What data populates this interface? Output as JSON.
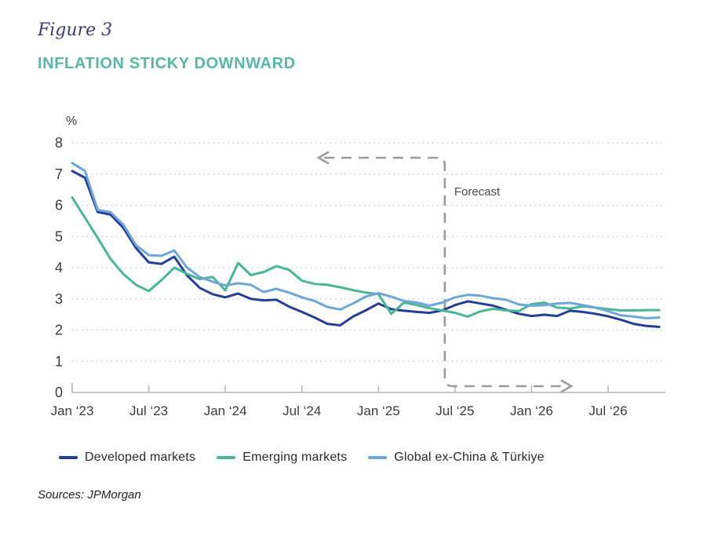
{
  "figure_label": "Figure 3",
  "title": "INFLATION STICKY DOWNWARD",
  "sources": "Sources: JPMorgan",
  "colors": {
    "figure_label": "#3c3c7c",
    "title": "#57b9a1",
    "axis_line": "#b5b5b5",
    "gridline": "#c9c9c9",
    "tick_text": "#3c3c3c",
    "annotation": "#9b9b9b"
  },
  "chart_data": {
    "type": "line",
    "title": "INFLATION STICKY DOWNWARD",
    "ylabel": "%",
    "xlabel": "",
    "ylim": [
      0,
      8.5
    ],
    "y_ticks": [
      0,
      1,
      2,
      3,
      4,
      5,
      6,
      7,
      8
    ],
    "grid": "dotted horizontal",
    "legend_position": "bottom",
    "x_tick_labels": [
      "Jan ‘23",
      "Jul ‘23",
      "Jan ‘24",
      "Jul ‘24",
      "Jan ‘25",
      "Jul ‘25",
      "Jan ‘26",
      "Jul ‘26"
    ],
    "x_tick_indices": [
      0,
      6,
      12,
      18,
      24,
      30,
      36,
      42
    ],
    "categories": [
      "Jan '23",
      "Feb '23",
      "Mar '23",
      "Apr '23",
      "May '23",
      "Jun '23",
      "Jul '23",
      "Aug '23",
      "Sep '23",
      "Oct '23",
      "Nov '23",
      "Dec '23",
      "Jan '24",
      "Feb '24",
      "Mar '24",
      "Apr '24",
      "May '24",
      "Jun '24",
      "Jul '24",
      "Aug '24",
      "Sep '24",
      "Oct '24",
      "Nov '24",
      "Dec '24",
      "Jan '25",
      "Feb '25",
      "Mar '25",
      "Apr '25",
      "May '25",
      "Jun '25",
      "Jul '25",
      "Aug '25",
      "Sep '25",
      "Oct '25",
      "Nov '25",
      "Dec '25",
      "Jan '26",
      "Feb '26",
      "Mar '26",
      "Apr '26",
      "May '26",
      "Jun '26",
      "Jul '26",
      "Aug '26",
      "Sep '26",
      "Oct '26",
      "Nov '26"
    ],
    "series": [
      {
        "name": "Developed markets",
        "color": "#243f94",
        "values": [
          7.1,
          6.88,
          5.78,
          5.7,
          5.28,
          4.63,
          4.17,
          4.12,
          4.35,
          3.75,
          3.35,
          3.15,
          3.05,
          3.17,
          3.0,
          2.95,
          2.97,
          2.75,
          2.58,
          2.4,
          2.2,
          2.15,
          2.43,
          2.63,
          2.85,
          2.67,
          2.62,
          2.58,
          2.55,
          2.63,
          2.8,
          2.92,
          2.85,
          2.78,
          2.65,
          2.52,
          2.45,
          2.49,
          2.45,
          2.62,
          2.58,
          2.52,
          2.44,
          2.33,
          2.2,
          2.13,
          2.1
        ]
      },
      {
        "name": "Emerging markets",
        "color": "#49b795",
        "values": [
          6.25,
          5.6,
          4.95,
          4.28,
          3.8,
          3.45,
          3.25,
          3.6,
          4.0,
          3.8,
          3.63,
          3.7,
          3.27,
          4.15,
          3.76,
          3.86,
          4.05,
          3.93,
          3.58,
          3.48,
          3.45,
          3.37,
          3.28,
          3.2,
          3.15,
          2.52,
          2.88,
          2.8,
          2.7,
          2.63,
          2.55,
          2.43,
          2.6,
          2.68,
          2.63,
          2.61,
          2.83,
          2.88,
          2.72,
          2.69,
          2.76,
          2.72,
          2.67,
          2.63,
          2.63,
          2.64,
          2.64
        ]
      },
      {
        "name": "Global ex-China & Türkiye",
        "color": "#6fa6d9",
        "values": [
          7.35,
          7.1,
          5.85,
          5.78,
          5.38,
          4.72,
          4.4,
          4.38,
          4.55,
          4.0,
          3.7,
          3.55,
          3.43,
          3.5,
          3.45,
          3.22,
          3.32,
          3.2,
          3.05,
          2.93,
          2.74,
          2.66,
          2.85,
          3.07,
          3.18,
          3.07,
          2.93,
          2.88,
          2.78,
          2.88,
          3.05,
          3.13,
          3.1,
          3.02,
          2.97,
          2.82,
          2.78,
          2.8,
          2.85,
          2.87,
          2.8,
          2.72,
          2.6,
          2.47,
          2.43,
          2.38,
          2.4
        ]
      }
    ],
    "annotation": {
      "label": "Forecast",
      "divider_month_index": 29.2,
      "history_arrow_direction": "left",
      "forecast_arrow_direction": "right"
    }
  }
}
